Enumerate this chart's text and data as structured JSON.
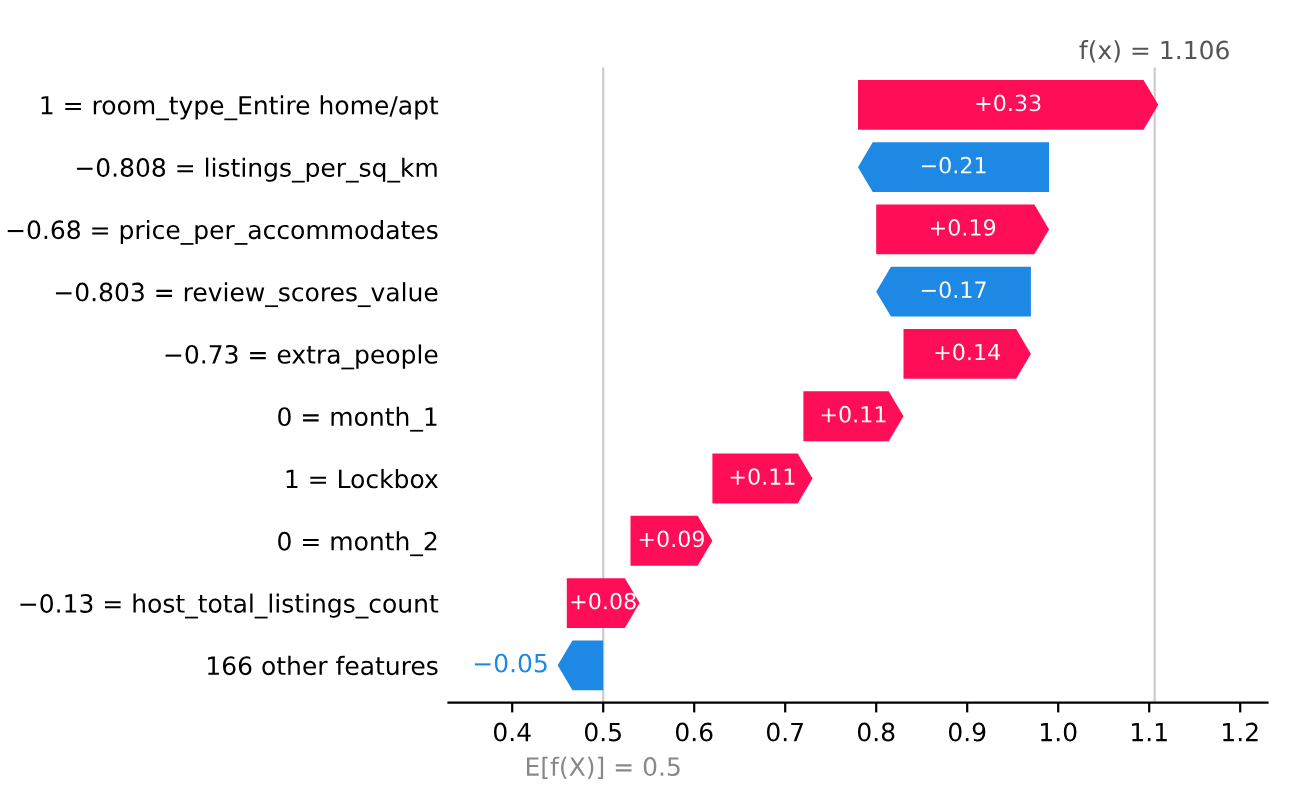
{
  "chart_data": {
    "type": "bar",
    "orientation": "horizontal",
    "categories": [
      "1 = room_type_Entire home/apt",
      "−0.808 = listings_per_sq_km",
      "−0.68 = price_per_accommodates",
      "−0.803 = review_scores_value",
      "−0.73 = extra_people",
      "0 = month_1",
      "1 = Lockbox",
      "0 = month_2",
      "−0.13 = host_total_listings_count",
      "166 other features"
    ],
    "values": [
      0.33,
      -0.21,
      0.19,
      -0.17,
      0.14,
      0.11,
      0.11,
      0.09,
      0.08,
      -0.05
    ],
    "base": [
      0.78,
      0.99,
      0.8,
      0.97,
      0.83,
      0.72,
      0.62,
      0.53,
      0.46,
      0.5
    ],
    "colors": [
      "#ff0d57",
      "#1e88e5",
      "#ff0d57",
      "#1e88e5",
      "#ff0d57",
      "#ff0d57",
      "#ff0d57",
      "#ff0d57",
      "#ff0d57",
      "#1e88e5"
    ],
    "value_labels": [
      "+0.33",
      "−0.21",
      "+0.19",
      "−0.17",
      "+0.14",
      "+0.11",
      "+0.11",
      "+0.09",
      "+0.08",
      "−0.05"
    ],
    "xlim": [
      0.33,
      1.23
    ],
    "xticks": [
      0.4,
      0.5,
      0.6,
      0.7,
      0.8,
      0.9,
      {
        "value": 1.0,
        "label": "1.0"
      },
      1.1,
      1.2
    ],
    "ref_lines": [
      {
        "axis": "x",
        "value": 1.106,
        "label": "f(x) = 1.106",
        "color": "#cccccc"
      },
      {
        "axis": "x",
        "value": 0.5,
        "label": "E[f(X)] = 0.5",
        "color": "#cccccc"
      }
    ],
    "grid": false,
    "legend": false
  }
}
